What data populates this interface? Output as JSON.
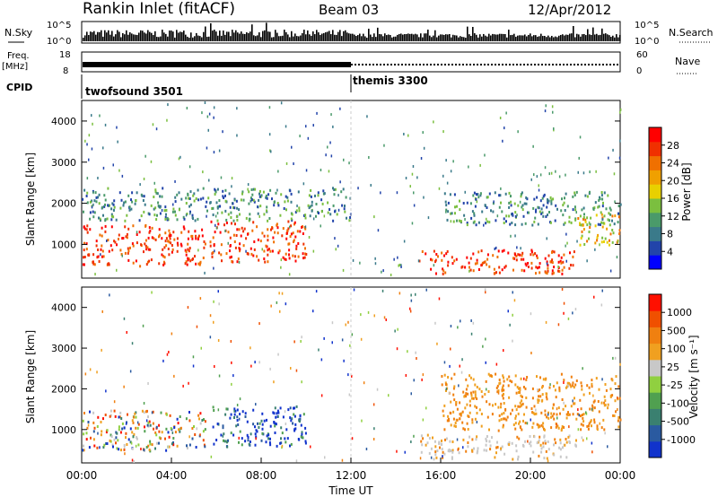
{
  "header": {
    "station": "Rankin Inlet (fitACF)",
    "beam": "Beam 03",
    "date": "12/Apr/2012"
  },
  "status_panels": {
    "nsky_label": "N.Sky",
    "nsky_ticks": [
      "10^5",
      "10^0"
    ],
    "nsearch_label": "N.Search",
    "nsearch_ticks": [
      "10^5",
      "10^0"
    ],
    "freq_label": "Freq.",
    "freq_unit": "[MHz]",
    "freq_ticks": [
      "18",
      "8"
    ],
    "nave_label": "Nave",
    "nave_ticks": [
      "60",
      "0"
    ],
    "cpid_label": "CPID",
    "cpid_modes": [
      {
        "name": "twofsound 3501",
        "start_hour": 0
      },
      {
        "name": "themis 3300",
        "start_hour": 12
      }
    ]
  },
  "chart_data": [
    {
      "type": "heatmap",
      "quantity": "Power",
      "xlabel": "",
      "ylabel": "Slant Range [km]",
      "xlim": [
        0,
        24
      ],
      "ylim": [
        180,
        4500
      ],
      "yticks": [
        "1000",
        "2000",
        "3000",
        "4000"
      ],
      "colorbar": {
        "label": "Power [dB]",
        "ticks": [
          "28",
          "24",
          "20",
          "16",
          "12",
          "8",
          "4"
        ],
        "tick_values": [
          28,
          24,
          20,
          16,
          12,
          8,
          4
        ],
        "colors": [
          "#0000ff",
          "#2244aa",
          "#3a7a8a",
          "#4a9a6a",
          "#7bbf3f",
          "#e8d000",
          "#f0a000",
          "#f07000",
          "#f03000",
          "#ff0000"
        ]
      },
      "regions": [
        {
          "t0": 0,
          "t1": 5.5,
          "r0": 500,
          "r1": 1500,
          "level": "high"
        },
        {
          "t0": 5.7,
          "t1": 10,
          "r0": 600,
          "r1": 1600,
          "level": "high"
        },
        {
          "t0": 15,
          "t1": 22,
          "r0": 300,
          "r1": 900,
          "level": "high"
        },
        {
          "t0": 22,
          "t1": 24,
          "r0": 1000,
          "r1": 1800,
          "level": "mid"
        },
        {
          "t0": 0,
          "t1": 12,
          "r0": 1600,
          "r1": 2400,
          "level": "low"
        },
        {
          "t0": 16,
          "t1": 24,
          "r0": 1500,
          "r1": 2300,
          "level": "low"
        }
      ]
    },
    {
      "type": "heatmap",
      "quantity": "Velocity",
      "xlabel": "Time UT",
      "ylabel": "Slant Range [km]",
      "xlim": [
        0,
        24
      ],
      "ylim": [
        180,
        4500
      ],
      "xticks": [
        "00:00",
        "04:00",
        "08:00",
        "12:00",
        "16:00",
        "20:00",
        "00:00"
      ],
      "yticks": [
        "1000",
        "2000",
        "3000",
        "4000"
      ],
      "colorbar": {
        "label": "Velocity [m s⁻¹]",
        "ticks": [
          "1000",
          "500",
          "100",
          "25",
          "-25",
          "-100",
          "-500",
          "-1000"
        ],
        "tick_values": [
          1000,
          500,
          100,
          25,
          -25,
          -100,
          -500,
          -1000
        ],
        "colors": [
          "#1133cc",
          "#2a5aa0",
          "#3a8070",
          "#50a050",
          "#90d040",
          "#c8c8c8",
          "#f0a020",
          "#f08010",
          "#f05000",
          "#ff1000"
        ]
      },
      "regions": [
        {
          "t0": 0,
          "t1": 5.5,
          "r0": 500,
          "r1": 1500,
          "level": "mixed"
        },
        {
          "t0": 5.7,
          "t1": 10,
          "r0": 600,
          "r1": 1600,
          "level": "negative"
        },
        {
          "t0": 15,
          "t1": 22,
          "r0": 300,
          "r1": 900,
          "level": "grey"
        },
        {
          "t0": 16,
          "t1": 24,
          "r0": 1000,
          "r1": 2400,
          "level": "orange"
        }
      ]
    }
  ]
}
